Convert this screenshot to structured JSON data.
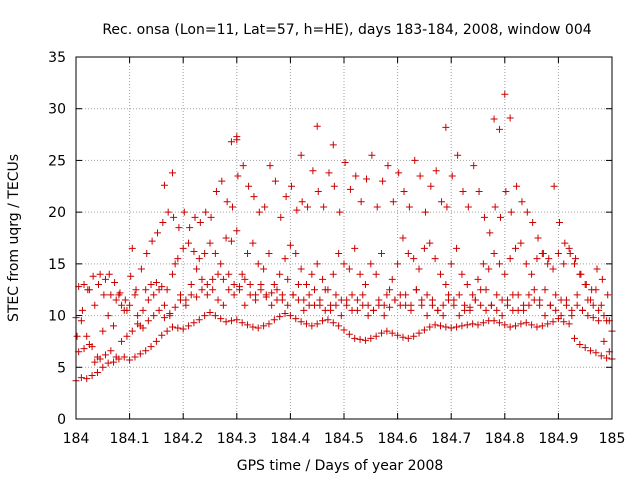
{
  "colors": {
    "series": "#cc0000",
    "axis": "#000000",
    "grid": "#a0a0a0"
  },
  "chart_data": {
    "type": "scatter",
    "title": "Rec. onsa (Lon=11, Lat=57, h=HE), days 183-184, 2008, window 004",
    "xlabel": "GPS time / Days of year 2008",
    "ylabel": "STEC from uqrg / TECUs",
    "xlim": [
      184,
      185
    ],
    "ylim": [
      0,
      35
    ],
    "xticks": [
      "184",
      "184.1",
      "184.2",
      "184.3",
      "184.4",
      "184.5",
      "184.6",
      "184.7",
      "184.8",
      "184.9",
      "185"
    ],
    "yticks": [
      "0",
      "5",
      "10",
      "15",
      "20",
      "25",
      "30",
      "35"
    ],
    "grid": true,
    "legend": "none",
    "marker": "+",
    "series": [
      {
        "name": "STEC",
        "x": [
          184.0,
          184.01,
          184.02,
          184.03,
          184.04,
          184.05,
          184.06,
          184.07,
          184.08,
          184.09,
          184.1,
          184.11,
          184.12,
          184.13,
          184.14,
          184.15,
          184.16,
          184.17,
          184.18,
          184.19,
          184.2,
          184.21,
          184.22,
          184.23,
          184.24,
          184.25,
          184.26,
          184.27,
          184.28,
          184.29,
          184.3,
          184.31,
          184.32,
          184.33,
          184.34,
          184.35,
          184.36,
          184.37,
          184.38,
          184.39,
          184.4,
          184.41,
          184.42,
          184.43,
          184.44,
          184.45,
          184.46,
          184.47,
          184.48,
          184.49,
          184.5,
          184.51,
          184.52,
          184.53,
          184.54,
          184.55,
          184.56,
          184.57,
          184.58,
          184.59,
          184.6,
          184.61,
          184.62,
          184.63,
          184.64,
          184.65,
          184.66,
          184.67,
          184.68,
          184.69,
          184.7,
          184.71,
          184.72,
          184.73,
          184.74,
          184.75,
          184.76,
          184.77,
          184.78,
          184.79,
          184.8,
          184.81,
          184.82,
          184.83,
          184.84,
          184.85,
          184.86,
          184.87,
          184.88,
          184.89,
          184.9,
          184.91,
          184.92,
          184.93,
          184.94,
          184.95,
          184.96,
          184.97,
          184.98,
          184.99,
          185.0,
          184.0,
          184.01,
          184.02,
          184.03,
          184.04,
          184.05,
          184.06,
          184.07,
          184.08,
          184.09,
          184.1,
          184.11,
          184.12,
          184.13,
          184.14,
          184.15,
          184.16,
          184.17,
          184.18,
          184.19,
          184.2,
          184.21,
          184.22,
          184.23,
          184.24,
          184.25,
          184.26,
          184.27,
          184.28,
          184.29,
          184.3,
          184.31,
          184.32,
          184.33,
          184.34,
          184.35,
          184.36,
          184.37,
          184.38,
          184.39,
          184.4,
          184.41,
          184.42,
          184.43,
          184.44,
          184.45,
          184.46,
          184.47,
          184.48,
          184.49,
          184.5,
          184.51,
          184.52,
          184.53,
          184.54,
          184.55,
          184.56,
          184.57,
          184.58,
          184.59,
          184.6,
          184.61,
          184.62,
          184.63,
          184.64,
          184.65,
          184.66,
          184.67,
          184.68,
          184.69,
          184.7,
          184.71,
          184.72,
          184.73,
          184.74,
          184.75,
          184.76,
          184.77,
          184.78,
          184.79,
          184.8,
          184.81,
          184.82,
          184.83,
          184.84,
          184.85,
          184.86,
          184.87,
          184.88,
          184.89,
          184.9,
          184.91,
          184.92,
          184.93,
          184.94,
          184.95,
          184.96,
          184.97,
          184.98,
          184.99,
          185.0,
          184.005,
          184.015,
          184.025,
          184.035,
          184.045,
          184.055,
          184.065,
          184.075,
          184.085,
          184.095,
          184.105,
          184.115,
          184.125,
          184.135,
          184.145,
          184.155,
          184.165,
          184.175,
          184.185,
          184.195,
          184.205,
          184.215,
          184.225,
          184.235,
          184.245,
          184.255,
          184.265,
          184.275,
          184.285,
          184.295,
          184.305,
          184.315,
          184.325,
          184.335,
          184.345,
          184.355,
          184.365,
          184.375,
          184.385,
          184.395,
          184.405,
          184.415,
          184.425,
          184.435,
          184.445,
          184.455,
          184.465,
          184.475,
          184.485,
          184.495,
          184.505,
          184.515,
          184.525,
          184.535,
          184.545,
          184.555,
          184.565,
          184.575,
          184.585,
          184.595,
          184.605,
          184.615,
          184.625,
          184.635,
          184.645,
          184.655,
          184.665,
          184.675,
          184.685,
          184.695,
          184.705,
          184.715,
          184.725,
          184.735,
          184.745,
          184.755,
          184.765,
          184.775,
          184.785,
          184.795,
          184.805,
          184.815,
          184.825,
          184.835,
          184.845,
          184.855,
          184.865,
          184.875,
          184.885,
          184.895,
          184.905,
          184.915,
          184.925,
          184.935,
          184.945,
          184.955,
          184.965,
          184.975,
          184.985,
          184.995,
          184.005,
          184.015,
          184.025,
          184.035,
          184.045,
          184.055,
          184.065,
          184.075,
          184.085,
          184.095,
          184.105,
          184.115,
          184.125,
          184.135,
          184.145,
          184.155,
          184.165,
          184.175,
          184.185,
          184.195,
          184.205,
          184.215,
          184.225,
          184.235,
          184.245,
          184.255,
          184.265,
          184.275,
          184.285,
          184.295,
          184.305,
          184.315,
          184.325,
          184.335,
          184.345,
          184.355,
          184.365,
          184.375,
          184.385,
          184.395,
          184.405,
          184.415,
          184.425,
          184.435,
          184.445,
          184.455,
          184.465,
          184.475,
          184.485,
          184.495,
          184.505,
          184.515,
          184.525,
          184.535,
          184.545,
          184.555,
          184.565,
          184.575,
          184.585,
          184.595,
          184.605,
          184.615,
          184.625,
          184.635,
          184.645,
          184.655,
          184.665,
          184.675,
          184.685,
          184.695,
          184.705,
          184.715,
          184.725,
          184.735,
          184.745,
          184.755,
          184.765,
          184.775,
          184.785,
          184.795,
          184.805,
          184.815,
          184.825,
          184.835,
          184.845,
          184.855,
          184.865,
          184.875,
          184.885,
          184.895,
          184.905,
          184.915,
          184.925,
          184.935,
          184.945,
          184.955,
          184.965,
          184.975,
          184.985,
          184.995,
          184.002,
          184.012,
          184.022,
          184.032,
          184.042,
          184.052,
          184.062,
          184.072,
          184.082,
          184.092,
          184.102,
          184.112,
          184.122,
          184.132,
          184.142,
          184.152,
          184.162,
          184.172,
          184.182,
          184.192,
          184.202,
          184.212,
          184.222,
          184.232,
          184.242,
          184.252,
          184.262,
          184.272,
          184.282,
          184.292,
          184.302,
          184.312,
          184.322,
          184.332,
          184.342,
          184.352,
          184.362,
          184.372,
          184.382,
          184.392,
          184.402,
          184.412,
          184.422,
          184.432,
          184.442,
          184.452,
          184.462,
          184.472,
          184.482,
          184.492,
          184.502,
          184.512,
          184.522,
          184.532,
          184.542,
          184.552,
          184.562,
          184.572,
          184.582,
          184.592,
          184.602,
          184.612,
          184.622,
          184.632,
          184.642,
          184.652,
          184.662,
          184.672,
          184.682,
          184.692,
          184.702,
          184.712,
          184.722,
          184.732,
          184.742,
          184.752,
          184.762,
          184.772,
          184.782,
          184.792,
          184.802,
          184.812,
          184.822,
          184.832,
          184.842,
          184.852,
          184.862,
          184.872,
          184.882,
          184.892,
          184.902,
          184.912,
          184.922,
          184.932,
          184.942,
          184.952,
          184.962,
          184.972,
          184.982,
          184.992,
          184.18,
          184.29,
          184.3,
          184.3,
          184.42,
          184.45,
          184.48,
          184.69,
          184.78,
          184.79,
          184.8,
          184.81,
          184.165
        ],
        "y": [
          3.7,
          4.0,
          3.9,
          4.2,
          4.5,
          5.0,
          5.4,
          5.5,
          5.8,
          6.0,
          5.7,
          6.0,
          6.3,
          6.6,
          7.0,
          7.5,
          8.1,
          8.5,
          8.9,
          8.8,
          8.7,
          9.0,
          9.3,
          9.6,
          10.0,
          10.3,
          10.0,
          9.7,
          9.4,
          9.5,
          9.6,
          9.3,
          9.1,
          8.9,
          8.8,
          9.0,
          9.2,
          9.6,
          9.9,
          10.2,
          10.0,
          9.7,
          9.4,
          9.2,
          9.0,
          9.2,
          9.5,
          9.6,
          9.3,
          9.0,
          8.6,
          8.2,
          7.8,
          7.7,
          7.6,
          7.8,
          8.0,
          8.3,
          8.5,
          8.3,
          8.1,
          7.9,
          7.8,
          8.0,
          8.3,
          8.6,
          8.9,
          9.1,
          9.0,
          8.9,
          8.8,
          8.9,
          9.0,
          9.1,
          9.2,
          9.1,
          9.3,
          9.5,
          9.5,
          9.3,
          9.1,
          8.9,
          9.0,
          9.2,
          9.3,
          9.1,
          8.9,
          9.0,
          9.2,
          9.4,
          9.7,
          9.4,
          9.2,
          7.8,
          7.2,
          6.9,
          6.6,
          6.4,
          6.1,
          5.9,
          5.8,
          9.8,
          9.5,
          8.0,
          7.0,
          6.0,
          8.5,
          10.0,
          9.0,
          12.0,
          10.5,
          11.0,
          12.0,
          9.0,
          12.5,
          13.0,
          13.2,
          12.8,
          12.5,
          14.0,
          15.5,
          16.5,
          17.0,
          16.2,
          15.5,
          16.0,
          17.0,
          16.0,
          15.0,
          17.5,
          17.2,
          18.2,
          14.0,
          16.0,
          17.0,
          15.0,
          14.5,
          16.0,
          13.0,
          14.0,
          15.5,
          16.8,
          16.0,
          14.5,
          13.0,
          14.0,
          15.0,
          13.5,
          12.5,
          14.0,
          16.0,
          15.0,
          14.5,
          16.5,
          14.0,
          13.0,
          15.0,
          14.0,
          16.0,
          12.0,
          13.5,
          15.0,
          17.5,
          16.0,
          15.5,
          14.5,
          16.5,
          17.0,
          15.5,
          14.0,
          13.0,
          15.0,
          16.5,
          14.0,
          13.0,
          12.0,
          13.5,
          15.0,
          14.5,
          16.0,
          15.0,
          14.0,
          15.5,
          16.5,
          17.0,
          15.0,
          14.0,
          15.5,
          16.0,
          15.0,
          14.5,
          16.0,
          15.0,
          16.5,
          15.0,
          14.0,
          13.0,
          11.5,
          12.5,
          11.0,
          9.5,
          8.5,
          12.8,
          13.0,
          12.5,
          11.0,
          14.0,
          13.5,
          12.0,
          11.5,
          11.0,
          10.5,
          16.5,
          10.0,
          10.5,
          11.5,
          12.0,
          12.5,
          11.0,
          10.0,
          15.0,
          12.0,
          11.5,
          13.0,
          14.5,
          13.5,
          12.0,
          12.5,
          11.5,
          11.0,
          14.0,
          13.0,
          12.5,
          11.0,
          12.0,
          11.5,
          13.0,
          12.0,
          11.0,
          12.5,
          11.5,
          11.0,
          12.0,
          13.0,
          11.5,
          11.0,
          12.5,
          11.0,
          10.5,
          11.0,
          12.0,
          11.5,
          11.0,
          10.5,
          11.5,
          12.0,
          11.0,
          10.5,
          11.5,
          11.0,
          12.5,
          11.5,
          11.0,
          12.0,
          11.0,
          12.5,
          11.0,
          12.0,
          11.5,
          10.5,
          11.0,
          12.0,
          11.5,
          12.0,
          11.0,
          10.5,
          11.5,
          11.0,
          12.5,
          11.0,
          10.5,
          11.5,
          11.0,
          12.0,
          10.5,
          11.0,
          12.0,
          11.5,
          11.0,
          12.5,
          11.0,
          12.0,
          11.5,
          11.0,
          10.5,
          11.0,
          10.5,
          11.5,
          11.0,
          10.5,
          10.0,
          9.5,
          6.5,
          6.8,
          7.2,
          5.5,
          5.8,
          6.2,
          6.6,
          6.0,
          7.5,
          8.0,
          8.5,
          9.2,
          8.8,
          9.5,
          10.0,
          10.5,
          9.8,
          10.2,
          10.8,
          11.5,
          11.0,
          12.0,
          11.8,
          12.5,
          13.0,
          13.5,
          14.0,
          13.5,
          12.5,
          12.0,
          12.8,
          13.5,
          13.0,
          12.0,
          12.5,
          11.8,
          12.2,
          11.5,
          12.0,
          13.5,
          12.0,
          11.5,
          10.5,
          12.0,
          11.0,
          11.5,
          12.5,
          10.5,
          11.0,
          10.0,
          11.5,
          12.0,
          10.5,
          11.0,
          10.0,
          10.5,
          11.0,
          10.0,
          10.8,
          11.5,
          12.0,
          11.0,
          10.5,
          12.5,
          11.5,
          10.0,
          11.0,
          10.5,
          10.0,
          11.5,
          11.0,
          10.0,
          10.5,
          10.8,
          11.5,
          12.5,
          10.5,
          11.0,
          12.0,
          10.0,
          11.5,
          10.5,
          12.0,
          10.5,
          11.0,
          12.5,
          11.5,
          10.0,
          11.0,
          10.5,
          10.0,
          11.5,
          10.0,
          12.0,
          10.5,
          10.0,
          9.8,
          9.5,
          7.5,
          6.5,
          8.0,
          10.5,
          12.5,
          13.8,
          13.0,
          12.0,
          14.0,
          13.2,
          12.2,
          11.5,
          13.8,
          12.5,
          14.5,
          16.0,
          17.2,
          18.0,
          19.0,
          20.0,
          19.5,
          18.5,
          20.0,
          18.5,
          19.5,
          19.0,
          20.0,
          19.5,
          22.0,
          23.0,
          21.0,
          20.5,
          23.5,
          24.5,
          22.5,
          21.5,
          20.0,
          20.5,
          24.5,
          23.0,
          19.5,
          21.5,
          22.5,
          20.2,
          21.0,
          20.5,
          24.0,
          22.0,
          20.5,
          23.8,
          22.5,
          20.0,
          24.8,
          22.2,
          23.5,
          21.0,
          23.2,
          25.5,
          20.5,
          23.0,
          24.5,
          21.0,
          23.8,
          22.0,
          20.5,
          25.0,
          23.5,
          20.0,
          22.5,
          24.0,
          21.0,
          20.5,
          23.5,
          25.5,
          22.0,
          20.5,
          24.5,
          22.0,
          19.5,
          18.0,
          20.5,
          19.5,
          22.0,
          20.0,
          22.5,
          21.0,
          20.0,
          19.0,
          17.5,
          16.0,
          15.5,
          22.5,
          19.0,
          17.0,
          16.0,
          15.5,
          14.0,
          13.0,
          12.5,
          14.5,
          13.5,
          12.0,
          23.8,
          26.8,
          27.3,
          27.0,
          25.5,
          28.3,
          26.5,
          28.2,
          29.0,
          28.0,
          31.4,
          29.1,
          22.6
        ]
      }
    ]
  }
}
